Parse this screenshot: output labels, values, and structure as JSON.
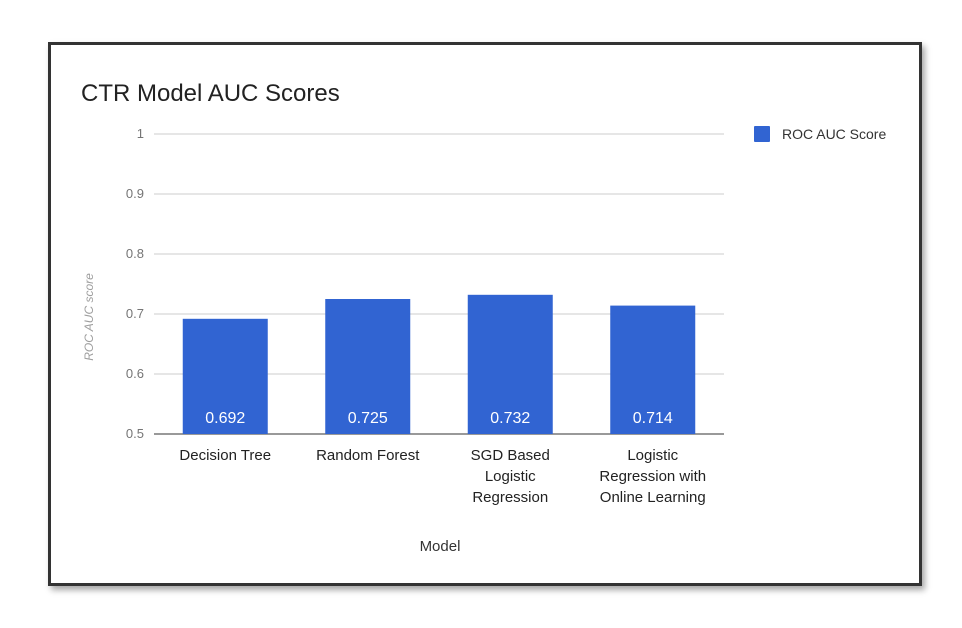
{
  "chart_data": {
    "type": "bar",
    "title": "CTR Model AUC Scores",
    "xlabel": "Model",
    "ylabel": "ROC AUC score",
    "ylim": [
      0.5,
      1
    ],
    "yticks": [
      "0.5",
      "0.6",
      "0.7",
      "0.8",
      "0.9",
      "1"
    ],
    "categories": [
      [
        "Decision Tree"
      ],
      [
        "Random Forest"
      ],
      [
        "SGD Based",
        "Logistic",
        "Regression"
      ],
      [
        "Logistic",
        "Regression with",
        "Online Learning"
      ]
    ],
    "series": [
      {
        "name": "ROC AUC Score",
        "values": [
          0.692,
          0.725,
          0.732,
          0.714
        ],
        "data_labels": [
          "0.692",
          "0.725",
          "0.732",
          "0.714"
        ]
      }
    ],
    "colors": {
      "bar": "#3164d2",
      "grid": "#cccccc",
      "axis": "#333333"
    },
    "grid": true,
    "legend_position": "right"
  }
}
